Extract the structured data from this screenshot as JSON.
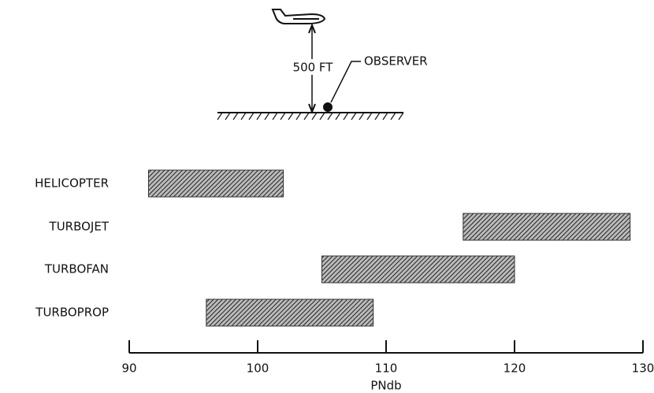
{
  "chart_data": {
    "type": "range-bar",
    "annotations": {
      "height": "500 FT",
      "observer": "OBSERVER"
    },
    "xlabel": "PNdb",
    "categories": [
      "HELICOPTER",
      "TURBOJET",
      "TURBOFAN",
      "TURBOPROP"
    ],
    "values": [
      [
        91.5,
        102
      ],
      [
        116,
        129
      ],
      [
        105,
        120
      ],
      [
        96,
        109
      ]
    ],
    "color": "#333333",
    "xlim": [
      90,
      130
    ],
    "xticks": [
      90,
      100,
      110,
      120,
      130
    ]
  }
}
